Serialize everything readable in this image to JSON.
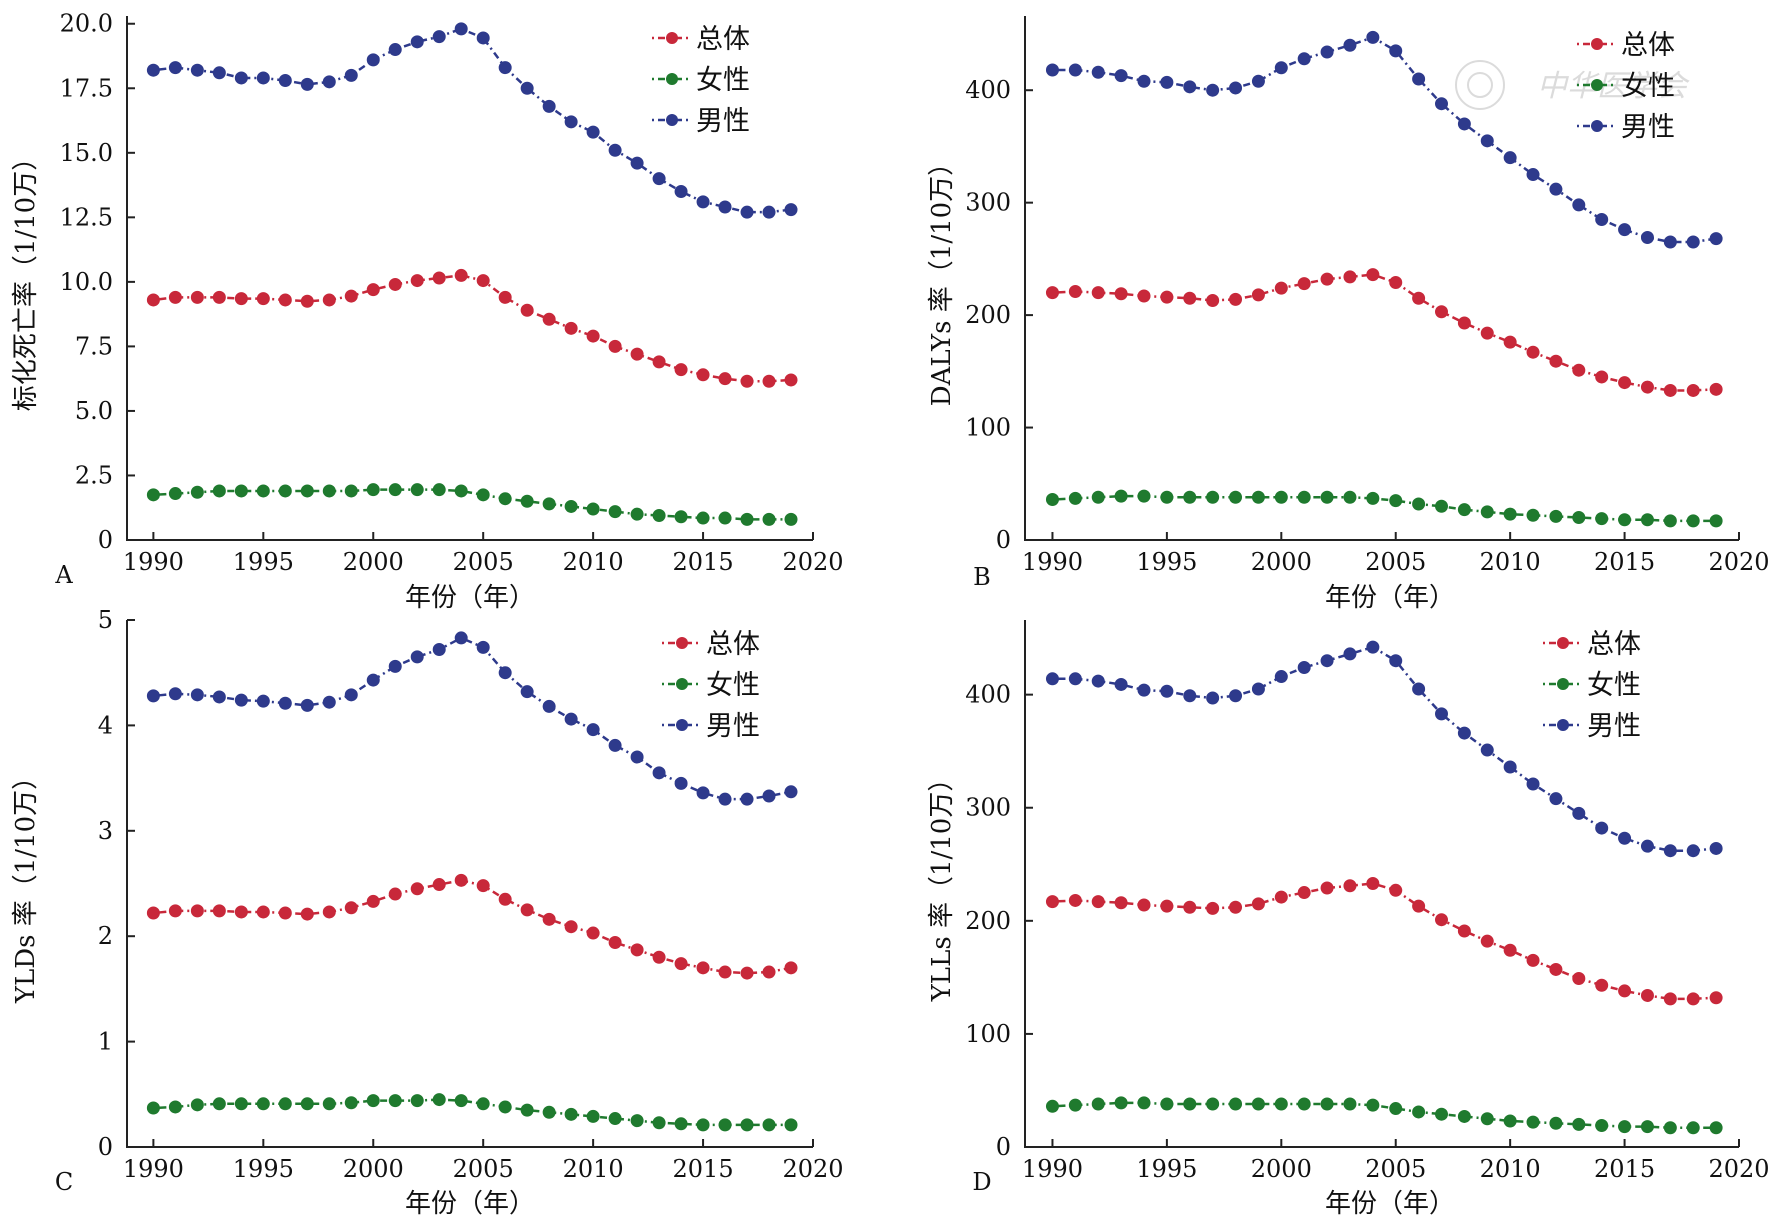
{
  "colors": {
    "total": "#c8283a",
    "female": "#1f7a2e",
    "male": "#2e3a8c"
  },
  "chart_data": [
    {
      "id": "A",
      "type": "line",
      "panel_label": "A",
      "xlabel": "年份（年）",
      "ylabel": "标化死亡率（1/10万）",
      "xlim": [
        1988.8,
        2020
      ],
      "ylim": [
        0,
        20.3
      ],
      "xticks": [
        1990,
        1995,
        2000,
        2005,
        2010,
        2015,
        2020
      ],
      "yticks": [
        0,
        2.5,
        5.0,
        7.5,
        10.0,
        12.5,
        15.0,
        17.5,
        20.0
      ],
      "ytick_labels": [
        "0",
        "2.5",
        "5.0",
        "7.5",
        "10.0",
        "12.5",
        "15.0",
        "17.5",
        "20.0"
      ],
      "x": [
        1990,
        1991,
        1992,
        1993,
        1994,
        1995,
        1996,
        1997,
        1998,
        1999,
        2000,
        2001,
        2002,
        2003,
        2004,
        2005,
        2006,
        2007,
        2008,
        2009,
        2010,
        2011,
        2012,
        2013,
        2014,
        2015,
        2016,
        2017,
        2018,
        2019
      ],
      "series": [
        {
          "name": "总体",
          "color_key": "total",
          "values": [
            9.3,
            9.4,
            9.4,
            9.4,
            9.35,
            9.35,
            9.3,
            9.25,
            9.3,
            9.45,
            9.7,
            9.9,
            10.05,
            10.15,
            10.25,
            10.05,
            9.4,
            8.9,
            8.55,
            8.2,
            7.9,
            7.5,
            7.2,
            6.9,
            6.6,
            6.4,
            6.25,
            6.15,
            6.15,
            6.2
          ]
        },
        {
          "name": "女性",
          "color_key": "female",
          "values": [
            1.75,
            1.8,
            1.85,
            1.9,
            1.9,
            1.9,
            1.9,
            1.9,
            1.9,
            1.9,
            1.95,
            1.95,
            1.95,
            1.95,
            1.9,
            1.75,
            1.6,
            1.5,
            1.4,
            1.3,
            1.2,
            1.1,
            1.0,
            0.95,
            0.9,
            0.85,
            0.85,
            0.8,
            0.8,
            0.8
          ]
        },
        {
          "name": "男性",
          "color_key": "male",
          "values": [
            18.2,
            18.3,
            18.2,
            18.1,
            17.9,
            17.9,
            17.8,
            17.65,
            17.75,
            18.0,
            18.6,
            19.0,
            19.3,
            19.5,
            19.8,
            19.45,
            18.3,
            17.5,
            16.8,
            16.2,
            15.8,
            15.1,
            14.6,
            14.0,
            13.5,
            13.1,
            12.9,
            12.7,
            12.7,
            12.8
          ]
        }
      ],
      "legend": {
        "position": "top-right"
      }
    },
    {
      "id": "B",
      "type": "line",
      "panel_label": "B",
      "xlabel": "年份（年）",
      "ylabel": "DALYs 率（1/10万）",
      "xlim": [
        1988.8,
        2020
      ],
      "ylim": [
        0,
        466
      ],
      "xticks": [
        1990,
        1995,
        2000,
        2005,
        2010,
        2015,
        2020
      ],
      "yticks": [
        0,
        100,
        200,
        300,
        400
      ],
      "ytick_labels": [
        "0",
        "100",
        "200",
        "300",
        "400"
      ],
      "x": [
        1990,
        1991,
        1992,
        1993,
        1994,
        1995,
        1996,
        1997,
        1998,
        1999,
        2000,
        2001,
        2002,
        2003,
        2004,
        2005,
        2006,
        2007,
        2008,
        2009,
        2010,
        2011,
        2012,
        2013,
        2014,
        2015,
        2016,
        2017,
        2018,
        2019
      ],
      "series": [
        {
          "name": "总体",
          "color_key": "total",
          "values": [
            220,
            221,
            220,
            219,
            217,
            216,
            215,
            213,
            214,
            218,
            224,
            228,
            232,
            234,
            236,
            229,
            215,
            203,
            193,
            184,
            176,
            167,
            159,
            151,
            145,
            140,
            136,
            133,
            133,
            134
          ]
        },
        {
          "name": "女性",
          "color_key": "female",
          "values": [
            36,
            37,
            38,
            39,
            39,
            38,
            38,
            38,
            38,
            38,
            38,
            38,
            38,
            38,
            37,
            35,
            32,
            30,
            27,
            25,
            23,
            22,
            21,
            20,
            19,
            18,
            18,
            17,
            17,
            17
          ]
        },
        {
          "name": "男性",
          "color_key": "male",
          "values": [
            418,
            418,
            416,
            413,
            408,
            407,
            403,
            400,
            402,
            408,
            420,
            428,
            434,
            440,
            447,
            435,
            410,
            388,
            370,
            355,
            340,
            325,
            312,
            298,
            285,
            276,
            269,
            265,
            265,
            268
          ]
        }
      ],
      "legend": {
        "position": "top-right"
      },
      "watermark": "中华医学会"
    },
    {
      "id": "C",
      "type": "line",
      "panel_label": "C",
      "xlabel": "年份（年）",
      "ylabel": "YLDs 率（1/10万）",
      "xlim": [
        1988.8,
        2020
      ],
      "ylim": [
        0,
        5
      ],
      "xticks": [
        1990,
        1995,
        2000,
        2005,
        2010,
        2015,
        2020
      ],
      "yticks": [
        0,
        1,
        2,
        3,
        4,
        5
      ],
      "ytick_labels": [
        "0",
        "1",
        "2",
        "3",
        "4",
        "5"
      ],
      "x": [
        1990,
        1991,
        1992,
        1993,
        1994,
        1995,
        1996,
        1997,
        1998,
        1999,
        2000,
        2001,
        2002,
        2003,
        2004,
        2005,
        2006,
        2007,
        2008,
        2009,
        2010,
        2011,
        2012,
        2013,
        2014,
        2015,
        2016,
        2017,
        2018,
        2019
      ],
      "series": [
        {
          "name": "总体",
          "color_key": "total",
          "values": [
            2.22,
            2.24,
            2.24,
            2.24,
            2.23,
            2.23,
            2.22,
            2.21,
            2.23,
            2.27,
            2.33,
            2.4,
            2.45,
            2.49,
            2.53,
            2.48,
            2.35,
            2.25,
            2.16,
            2.09,
            2.03,
            1.94,
            1.87,
            1.8,
            1.74,
            1.7,
            1.66,
            1.65,
            1.66,
            1.7
          ]
        },
        {
          "name": "女性",
          "color_key": "female",
          "values": [
            0.37,
            0.38,
            0.4,
            0.41,
            0.41,
            0.41,
            0.41,
            0.41,
            0.41,
            0.42,
            0.44,
            0.44,
            0.44,
            0.45,
            0.44,
            0.41,
            0.38,
            0.35,
            0.33,
            0.31,
            0.29,
            0.27,
            0.25,
            0.23,
            0.22,
            0.21,
            0.21,
            0.21,
            0.21,
            0.21
          ]
        },
        {
          "name": "男性",
          "color_key": "male",
          "values": [
            4.28,
            4.3,
            4.29,
            4.27,
            4.24,
            4.23,
            4.21,
            4.19,
            4.22,
            4.29,
            4.43,
            4.56,
            4.65,
            4.72,
            4.83,
            4.74,
            4.5,
            4.32,
            4.18,
            4.06,
            3.96,
            3.81,
            3.7,
            3.55,
            3.45,
            3.36,
            3.3,
            3.3,
            3.33,
            3.37
          ]
        }
      ],
      "legend": {
        "position": "top-right"
      }
    },
    {
      "id": "D",
      "type": "line",
      "panel_label": "D",
      "xlabel": "年份（年）",
      "ylabel": "YLLs 率（1/10万）",
      "xlim": [
        1988.8,
        2020
      ],
      "ylim": [
        0,
        466
      ],
      "xticks": [
        1990,
        1995,
        2000,
        2005,
        2010,
        2015,
        2020
      ],
      "yticks": [
        0,
        100,
        200,
        300,
        400
      ],
      "ytick_labels": [
        "0",
        "100",
        "200",
        "300",
        "400"
      ],
      "x": [
        1990,
        1991,
        1992,
        1993,
        1994,
        1995,
        1996,
        1997,
        1998,
        1999,
        2000,
        2001,
        2002,
        2003,
        2004,
        2005,
        2006,
        2007,
        2008,
        2009,
        2010,
        2011,
        2012,
        2013,
        2014,
        2015,
        2016,
        2017,
        2018,
        2019
      ],
      "series": [
        {
          "name": "总体",
          "color_key": "total",
          "values": [
            217,
            218,
            217,
            216,
            214,
            213,
            212,
            211,
            212,
            215,
            221,
            225,
            229,
            231,
            233,
            227,
            213,
            201,
            191,
            182,
            174,
            165,
            157,
            149,
            143,
            138,
            134,
            131,
            131,
            132
          ]
        },
        {
          "name": "女性",
          "color_key": "female",
          "values": [
            36,
            37,
            38,
            39,
            39,
            38,
            38,
            38,
            38,
            38,
            38,
            38,
            38,
            38,
            37,
            34,
            31,
            29,
            27,
            25,
            23,
            22,
            21,
            20,
            19,
            18,
            18,
            17,
            17,
            17
          ]
        },
        {
          "name": "男性",
          "color_key": "male",
          "values": [
            414,
            414,
            412,
            409,
            404,
            403,
            399,
            397,
            399,
            405,
            416,
            424,
            430,
            436,
            442,
            430,
            405,
            383,
            366,
            351,
            336,
            321,
            308,
            295,
            282,
            273,
            266,
            262,
            262,
            264
          ]
        }
      ],
      "legend": {
        "position": "top-right"
      }
    }
  ]
}
